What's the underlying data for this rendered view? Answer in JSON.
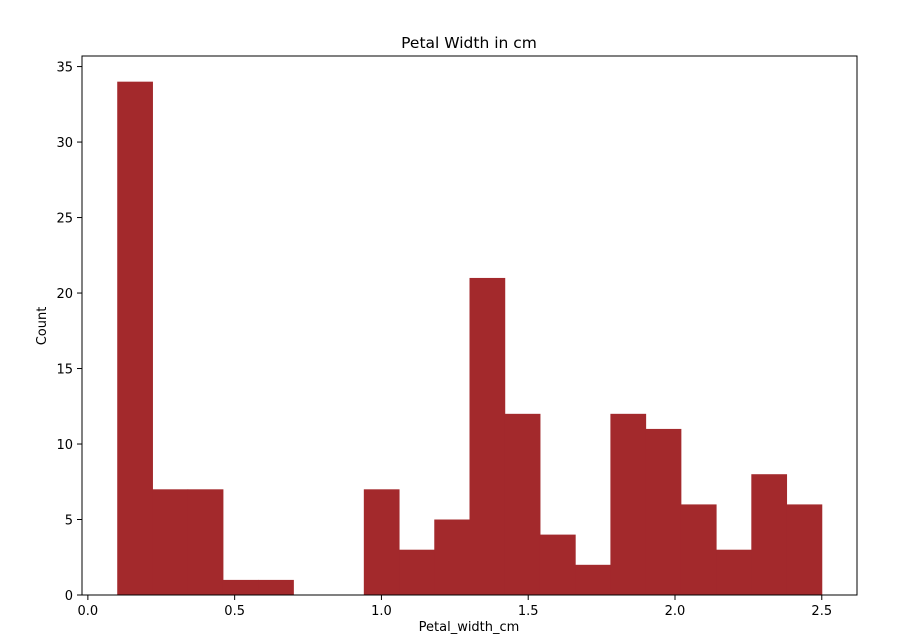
{
  "chart_data": {
    "type": "bar",
    "subtype": "histogram",
    "title": "Petal Width in cm",
    "xlabel": "Petal_width_cm",
    "ylabel": "Count",
    "xlim": [
      -0.02,
      2.62
    ],
    "ylim": [
      0,
      35.7
    ],
    "xticks": [
      0.0,
      0.5,
      1.0,
      1.5,
      2.0,
      2.5
    ],
    "xtick_labels": [
      "0.0",
      "0.5",
      "1.0",
      "1.5",
      "2.0",
      "2.5"
    ],
    "yticks": [
      0,
      5,
      10,
      15,
      20,
      25,
      30,
      35
    ],
    "ytick_labels": [
      "0",
      "5",
      "10",
      "15",
      "20",
      "25",
      "30",
      "35"
    ],
    "bin_edges": [
      0.1,
      0.22,
      0.34,
      0.46,
      0.58,
      0.7,
      0.82,
      0.94,
      1.06,
      1.18,
      1.3,
      1.42,
      1.54,
      1.66,
      1.78,
      1.9,
      2.02,
      2.14,
      2.26,
      2.38,
      2.5
    ],
    "values": [
      34,
      7,
      7,
      1,
      1,
      0,
      0,
      7,
      3,
      5,
      21,
      12,
      4,
      2,
      12,
      11,
      6,
      3,
      8,
      6
    ],
    "color": "#a3292c",
    "grid": false,
    "legend": false
  }
}
